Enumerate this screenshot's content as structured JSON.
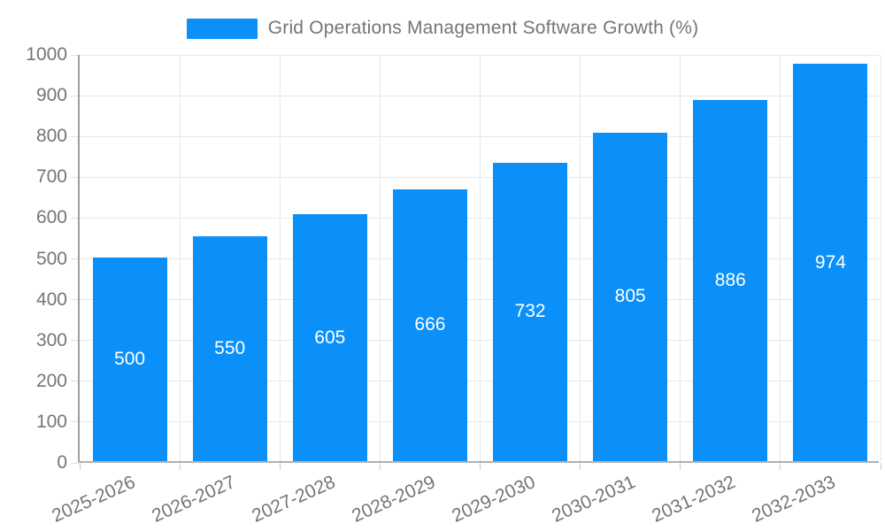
{
  "legend": {
    "label": "Grid Operations Management Software Growth (%)"
  },
  "chart_data": {
    "type": "bar",
    "title": "Grid Operations Management Software Growth (%)",
    "categories": [
      "2025-2026",
      "2026-2027",
      "2027-2028",
      "2028-2029",
      "2029-2030",
      "2030-2031",
      "2031-2032",
      "2032-2033"
    ],
    "values": [
      500,
      550,
      605,
      666,
      732,
      805,
      886,
      974
    ],
    "value_labels": [
      "500",
      "550",
      "605",
      "666",
      "732",
      "805",
      "886",
      "974"
    ],
    "xlabel": "",
    "ylabel": "",
    "ylim": [
      0,
      1000
    ],
    "yticks": [
      0,
      100,
      200,
      300,
      400,
      500,
      600,
      700,
      800,
      900,
      1000
    ],
    "grid": true,
    "legend_position": "top-center",
    "x_label_rotation_deg": -24
  },
  "colors": {
    "bar": "#0a90f8",
    "grid": "#e8e8e8",
    "axis": "#9e9e9e",
    "tick_text": "#757575",
    "value_text": "#ffffff",
    "background": "#ffffff"
  }
}
